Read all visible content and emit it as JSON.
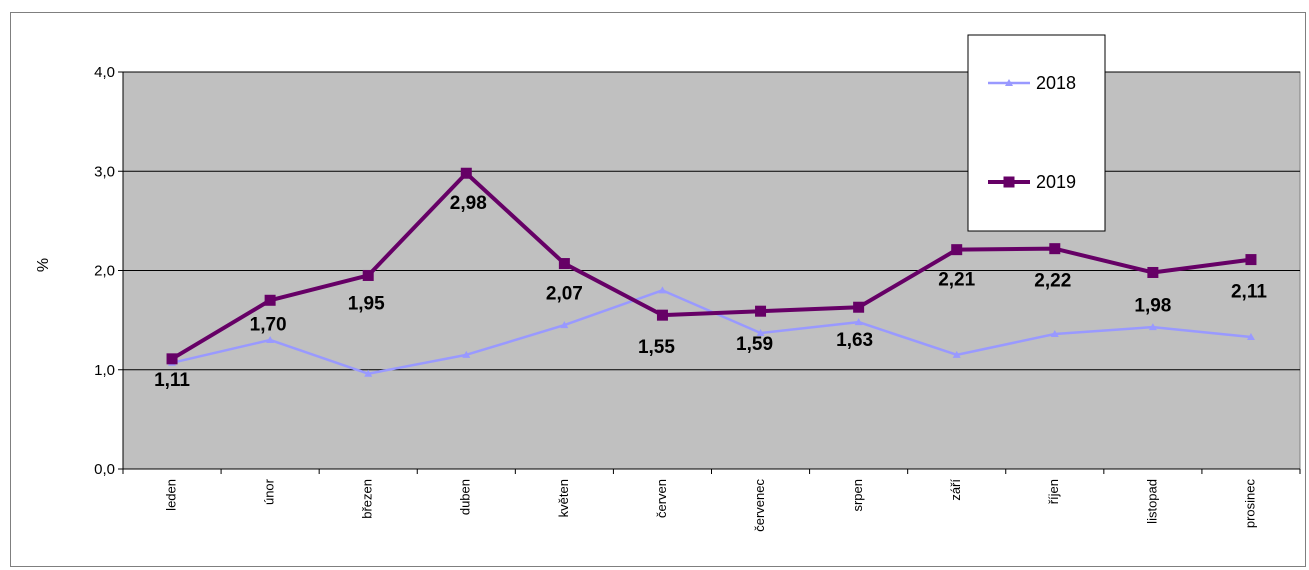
{
  "chart_data": {
    "type": "line",
    "categories": [
      "leden",
      "únor",
      "březen",
      "duben",
      "květen",
      "červen",
      "červenec",
      "srpen",
      "září",
      "říjen",
      "listopad",
      "prosinec"
    ],
    "series": [
      {
        "name": "2018",
        "values": [
          1.07,
          1.3,
          0.96,
          1.15,
          1.45,
          1.8,
          1.37,
          1.48,
          1.15,
          1.36,
          1.43,
          1.33
        ],
        "color": "#9999ff",
        "marker": "triangle"
      },
      {
        "name": "2019",
        "values": [
          1.11,
          1.7,
          1.95,
          2.98,
          2.07,
          1.55,
          1.59,
          1.63,
          2.21,
          2.22,
          1.98,
          2.11
        ],
        "data_labels": [
          "1,11",
          "1,70",
          "1,95",
          "2,98",
          "2,07",
          "1,55",
          "1,59",
          "1,63",
          "2,21",
          "2,22",
          "1,98",
          "2,11"
        ],
        "color": "#660066",
        "marker": "square"
      }
    ],
    "ylabel": "%",
    "xlabel": "",
    "ylim": [
      0,
      4
    ],
    "yticks": [
      "0,0",
      "1,0",
      "2,0",
      "3,0",
      "4,0"
    ],
    "grid": true,
    "plot_background": "#c0c0c0",
    "legend_position": "top-right"
  }
}
